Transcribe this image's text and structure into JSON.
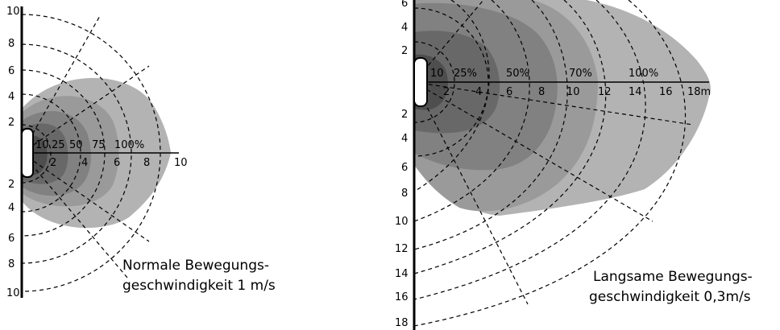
{
  "left_diagram": {
    "y_labels_upper": [
      "10",
      "8",
      "6",
      "4",
      "2"
    ],
    "y_labels_lower": [
      "2",
      "4",
      "6",
      "8",
      "10"
    ],
    "x_labels": [
      "2",
      "4",
      "6",
      "8",
      "10"
    ],
    "percent_labels": [
      "10",
      "25",
      "50",
      "75",
      "100%"
    ],
    "caption_line1": "Normale Bewegungs-",
    "caption_line2": "geschwindigkeit 1 m/s"
  },
  "right_diagram": {
    "y_labels_upper": [
      "6",
      "4",
      "2"
    ],
    "y_labels_lower": [
      "2",
      "4",
      "6",
      "8",
      "10",
      "12",
      "14",
      "16",
      "18"
    ],
    "x_labels": [
      "2",
      "4",
      "6",
      "8",
      "10",
      "12",
      "14",
      "16",
      "18m"
    ],
    "percent_labels": [
      "10",
      "25%",
      "50%",
      "70%",
      "100%"
    ],
    "caption_line1": "Langsame Bewegungs-",
    "caption_line2": "geschwindigkeit 0,3m/s"
  },
  "colors": {
    "zone_outer": "#b3b3b3",
    "zone_2": "#9a9a9a",
    "zone_3": "#818181",
    "zone_4": "#686868",
    "zone_inner": "#4e4e4e"
  }
}
